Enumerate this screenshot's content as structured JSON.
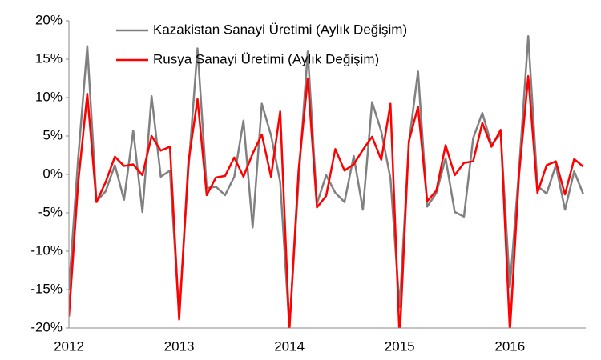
{
  "chart_data": {
    "type": "line",
    "categories": [
      "2012",
      null,
      null,
      null,
      null,
      null,
      null,
      null,
      null,
      null,
      null,
      null,
      "2013",
      null,
      null,
      null,
      null,
      null,
      null,
      null,
      null,
      null,
      null,
      null,
      "2014",
      null,
      null,
      null,
      null,
      null,
      null,
      null,
      null,
      null,
      null,
      null,
      "2015",
      null,
      null,
      null,
      null,
      null,
      null,
      null,
      null,
      null,
      null,
      null,
      "2016",
      null,
      null,
      null,
      null,
      null,
      null,
      null,
      null
    ],
    "series": [
      {
        "name": "Kazakistan Sanayi Üretimi (Aylık Değişim)",
        "color": "#808080",
        "values": [
          -15,
          2,
          16.7,
          -3.5,
          -2.2,
          1.2,
          -3.3,
          5.7,
          -4.9,
          10.2,
          -0.3,
          0.5,
          -18.5,
          0.5,
          16.4,
          -1.8,
          -1.6,
          -2.7,
          -0.3,
          7.0,
          -6.9,
          9.2,
          5.1,
          -1.0,
          -20,
          -0.8,
          16.0,
          -3.8,
          -0.1,
          -2.4,
          -3.6,
          2.4,
          -4.6,
          9.4,
          5.6,
          -0.5,
          -17.3,
          4.0,
          13.4,
          -4.2,
          -2.4,
          2.1,
          -4.9,
          -5.5,
          4.7,
          8.0,
          3.9,
          5.3,
          -14.7,
          0.7,
          18.0,
          -1.5,
          -2.5,
          1.2,
          -4.6,
          0.4,
          -2.6
        ]
      },
      {
        "name": "Rusya Sanayi Üretimi (Aylık Değişim)",
        "color": "#ff0000",
        "values": [
          -18.5,
          -1.2,
          10.5,
          -3.6,
          -1.0,
          2.3,
          1.1,
          1.3,
          -0.1,
          5.0,
          3.1,
          3.6,
          -18.9,
          1.5,
          9.8,
          -2.7,
          -0.4,
          -0.2,
          2.2,
          -0.3,
          2.7,
          5.2,
          -0.3,
          8.2,
          -20.3,
          0.5,
          12.5,
          -4.3,
          -2.8,
          3.3,
          0.5,
          1.3,
          3.2,
          4.9,
          1.9,
          9.2,
          -21.5,
          4.3,
          8.8,
          -3.5,
          -2.1,
          3.8,
          -0.1,
          1.5,
          1.7,
          6.7,
          3.6,
          5.8,
          -20.5,
          0.0,
          12.8,
          -2.4,
          1.2,
          1.7,
          -2.6,
          2.0,
          1.0
        ]
      }
    ],
    "ylim": [
      -20,
      20
    ],
    "yticks": [
      {
        "value": -20,
        "label": "-20%"
      },
      {
        "value": -15,
        "label": "-15%"
      },
      {
        "value": -10,
        "label": "-10%"
      },
      {
        "value": -5,
        "label": "-5%"
      },
      {
        "value": 0,
        "label": "0%"
      },
      {
        "value": 5,
        "label": "5%"
      },
      {
        "value": 10,
        "label": "10%"
      },
      {
        "value": 15,
        "label": "15%"
      },
      {
        "value": 20,
        "label": "20%"
      }
    ],
    "grid": false
  }
}
